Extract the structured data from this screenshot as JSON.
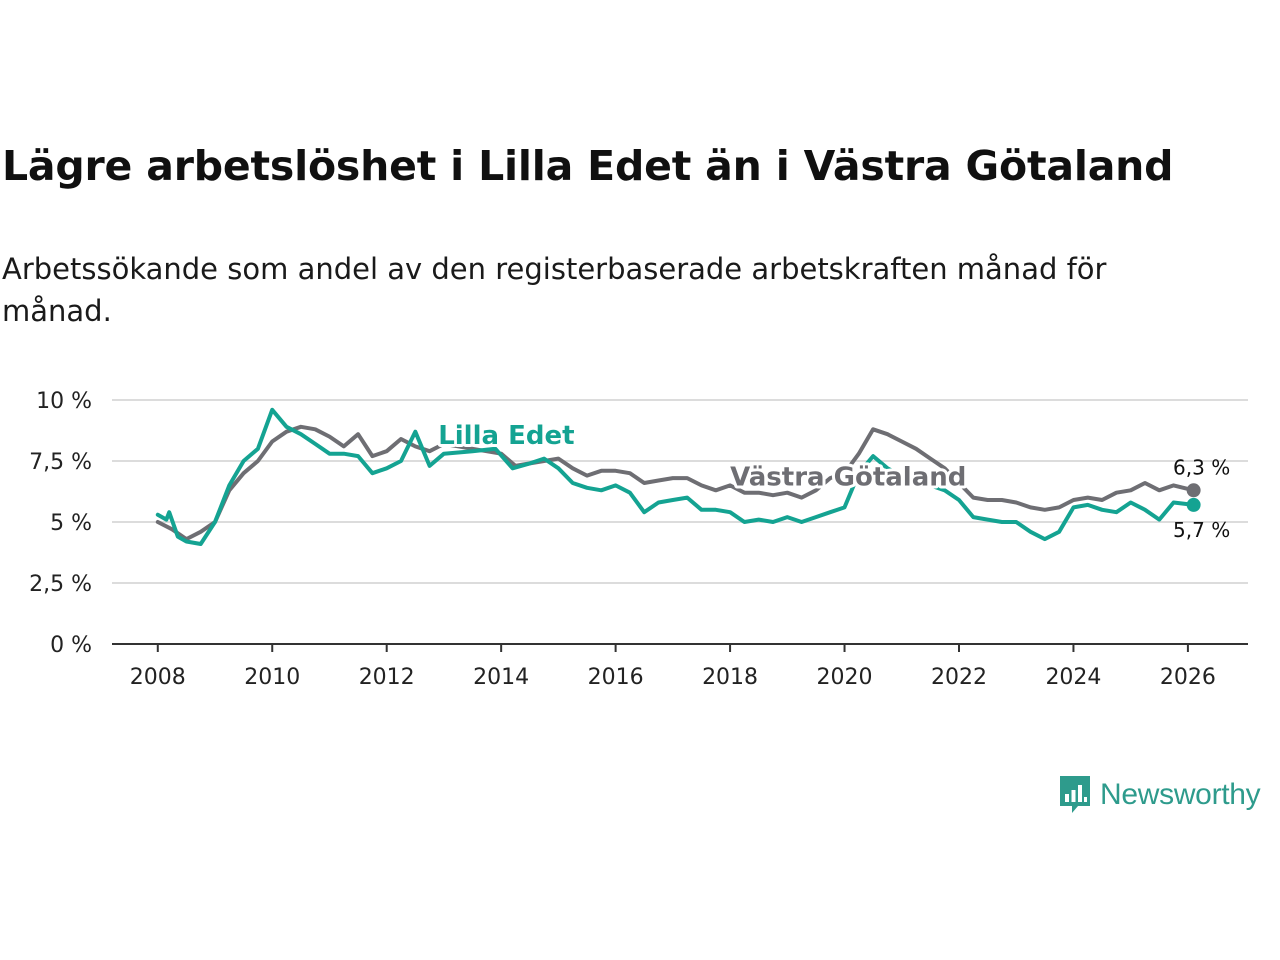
{
  "title": "Lägre arbetslöshet i Lilla Edet än i Västra Götaland",
  "subtitle": "Arbetssökande som andel av den registerbaserade arbetskraften månad för månad.",
  "brand": {
    "name": "Newsworthy",
    "icon": "newsworthy-logo-icon",
    "color": "#2e9b8c"
  },
  "chart_data": {
    "type": "line",
    "title": "Lägre arbetslöshet i Lilla Edet än i Västra Götaland",
    "xlabel": "",
    "ylabel": "",
    "xlim": [
      2007.2,
      2027.05
    ],
    "ylim": [
      0,
      10
    ],
    "grid": true,
    "y_ticks": [
      0,
      2.5,
      5,
      7.5,
      10
    ],
    "y_tick_labels": [
      "0 %",
      "2,5 %",
      "5 %",
      "7,5 %",
      "10 %"
    ],
    "x_ticks": [
      2008,
      2010,
      2012,
      2014,
      2016,
      2018,
      2020,
      2022,
      2024,
      2026
    ],
    "x_tick_labels": [
      "2008",
      "2010",
      "2012",
      "2014",
      "2016",
      "2018",
      "2020",
      "2022",
      "2024",
      "2026"
    ],
    "series": [
      {
        "name": "Västra Götaland",
        "color": "#6e6e73",
        "label": "Västra Götaland",
        "label_position": [
          2018,
          6.5
        ],
        "end_label": "6,3 %",
        "points": [
          [
            2008.0,
            5.0
          ],
          [
            2008.25,
            4.7
          ],
          [
            2008.5,
            4.3
          ],
          [
            2008.75,
            4.6
          ],
          [
            2009.0,
            5.0
          ],
          [
            2009.25,
            6.3
          ],
          [
            2009.5,
            7.0
          ],
          [
            2009.75,
            7.5
          ],
          [
            2010.0,
            8.3
          ],
          [
            2010.25,
            8.7
          ],
          [
            2010.5,
            8.9
          ],
          [
            2010.75,
            8.8
          ],
          [
            2011.0,
            8.5
          ],
          [
            2011.25,
            8.1
          ],
          [
            2011.5,
            8.6
          ],
          [
            2011.75,
            7.7
          ],
          [
            2012.0,
            7.9
          ],
          [
            2012.25,
            8.4
          ],
          [
            2012.5,
            8.1
          ],
          [
            2012.75,
            7.9
          ],
          [
            2013.0,
            8.2
          ],
          [
            2013.5,
            8.0
          ],
          [
            2014.0,
            7.8
          ],
          [
            2014.25,
            7.3
          ],
          [
            2014.5,
            7.4
          ],
          [
            2014.75,
            7.5
          ],
          [
            2015.0,
            7.6
          ],
          [
            2015.25,
            7.2
          ],
          [
            2015.5,
            6.9
          ],
          [
            2015.75,
            7.1
          ],
          [
            2016.0,
            7.1
          ],
          [
            2016.25,
            7.0
          ],
          [
            2016.5,
            6.6
          ],
          [
            2016.75,
            6.7
          ],
          [
            2017.0,
            6.8
          ],
          [
            2017.25,
            6.8
          ],
          [
            2017.5,
            6.5
          ],
          [
            2017.75,
            6.3
          ],
          [
            2018.0,
            6.5
          ],
          [
            2018.25,
            6.2
          ],
          [
            2018.5,
            6.2
          ],
          [
            2018.75,
            6.1
          ],
          [
            2019.0,
            6.2
          ],
          [
            2019.25,
            6.0
          ],
          [
            2019.5,
            6.3
          ],
          [
            2019.75,
            6.8
          ],
          [
            2020.0,
            7.0
          ],
          [
            2020.25,
            7.8
          ],
          [
            2020.5,
            8.8
          ],
          [
            2020.75,
            8.6
          ],
          [
            2021.0,
            8.3
          ],
          [
            2021.25,
            8.0
          ],
          [
            2021.5,
            7.6
          ],
          [
            2021.75,
            7.2
          ],
          [
            2022.0,
            6.6
          ],
          [
            2022.25,
            6.0
          ],
          [
            2022.5,
            5.9
          ],
          [
            2022.75,
            5.9
          ],
          [
            2023.0,
            5.8
          ],
          [
            2023.25,
            5.6
          ],
          [
            2023.5,
            5.5
          ],
          [
            2023.75,
            5.6
          ],
          [
            2024.0,
            5.9
          ],
          [
            2024.25,
            6.0
          ],
          [
            2024.5,
            5.9
          ],
          [
            2024.75,
            6.2
          ],
          [
            2025.0,
            6.3
          ],
          [
            2025.25,
            6.6
          ],
          [
            2025.5,
            6.3
          ],
          [
            2025.75,
            6.5
          ],
          [
            2026.1,
            6.3
          ]
        ]
      },
      {
        "name": "Lilla Edet",
        "color": "#14a392",
        "label": "Lilla Edet",
        "label_position": [
          2012.9,
          8.2
        ],
        "end_label": "5,7 %",
        "points": [
          [
            2008.0,
            5.3
          ],
          [
            2008.15,
            5.1
          ],
          [
            2008.2,
            5.4
          ],
          [
            2008.35,
            4.4
          ],
          [
            2008.5,
            4.2
          ],
          [
            2008.75,
            4.1
          ],
          [
            2009.0,
            5.0
          ],
          [
            2009.25,
            6.5
          ],
          [
            2009.5,
            7.5
          ],
          [
            2009.75,
            8.0
          ],
          [
            2010.0,
            9.6
          ],
          [
            2010.25,
            8.9
          ],
          [
            2010.5,
            8.6
          ],
          [
            2010.75,
            8.2
          ],
          [
            2011.0,
            7.8
          ],
          [
            2011.25,
            7.8
          ],
          [
            2011.5,
            7.7
          ],
          [
            2011.75,
            7.0
          ],
          [
            2012.0,
            7.2
          ],
          [
            2012.25,
            7.5
          ],
          [
            2012.5,
            8.7
          ],
          [
            2012.75,
            7.3
          ],
          [
            2013.0,
            7.8
          ],
          [
            2013.5,
            7.9
          ],
          [
            2013.9,
            8.0
          ],
          [
            2014.2,
            7.2
          ],
          [
            2014.5,
            7.4
          ],
          [
            2014.75,
            7.6
          ],
          [
            2015.0,
            7.2
          ],
          [
            2015.25,
            6.6
          ],
          [
            2015.5,
            6.4
          ],
          [
            2015.75,
            6.3
          ],
          [
            2016.0,
            6.5
          ],
          [
            2016.25,
            6.2
          ],
          [
            2016.5,
            5.4
          ],
          [
            2016.75,
            5.8
          ],
          [
            2017.0,
            5.9
          ],
          [
            2017.25,
            6.0
          ],
          [
            2017.5,
            5.5
          ],
          [
            2017.75,
            5.5
          ],
          [
            2018.0,
            5.4
          ],
          [
            2018.25,
            5.0
          ],
          [
            2018.5,
            5.1
          ],
          [
            2018.75,
            5.0
          ],
          [
            2019.0,
            5.2
          ],
          [
            2019.25,
            5.0
          ],
          [
            2019.5,
            5.2
          ],
          [
            2019.75,
            5.4
          ],
          [
            2020.0,
            5.6
          ],
          [
            2020.25,
            7.0
          ],
          [
            2020.5,
            7.7
          ],
          [
            2020.75,
            7.2
          ],
          [
            2021.0,
            6.9
          ],
          [
            2021.25,
            6.8
          ],
          [
            2021.5,
            6.5
          ],
          [
            2021.75,
            6.3
          ],
          [
            2022.0,
            5.9
          ],
          [
            2022.25,
            5.2
          ],
          [
            2022.5,
            5.1
          ],
          [
            2022.75,
            5.0
          ],
          [
            2023.0,
            5.0
          ],
          [
            2023.25,
            4.6
          ],
          [
            2023.5,
            4.3
          ],
          [
            2023.75,
            4.6
          ],
          [
            2024.0,
            5.6
          ],
          [
            2024.25,
            5.7
          ],
          [
            2024.5,
            5.5
          ],
          [
            2024.75,
            5.4
          ],
          [
            2025.0,
            5.8
          ],
          [
            2025.25,
            5.5
          ],
          [
            2025.5,
            5.1
          ],
          [
            2025.75,
            5.8
          ],
          [
            2026.1,
            5.7
          ]
        ]
      }
    ]
  }
}
